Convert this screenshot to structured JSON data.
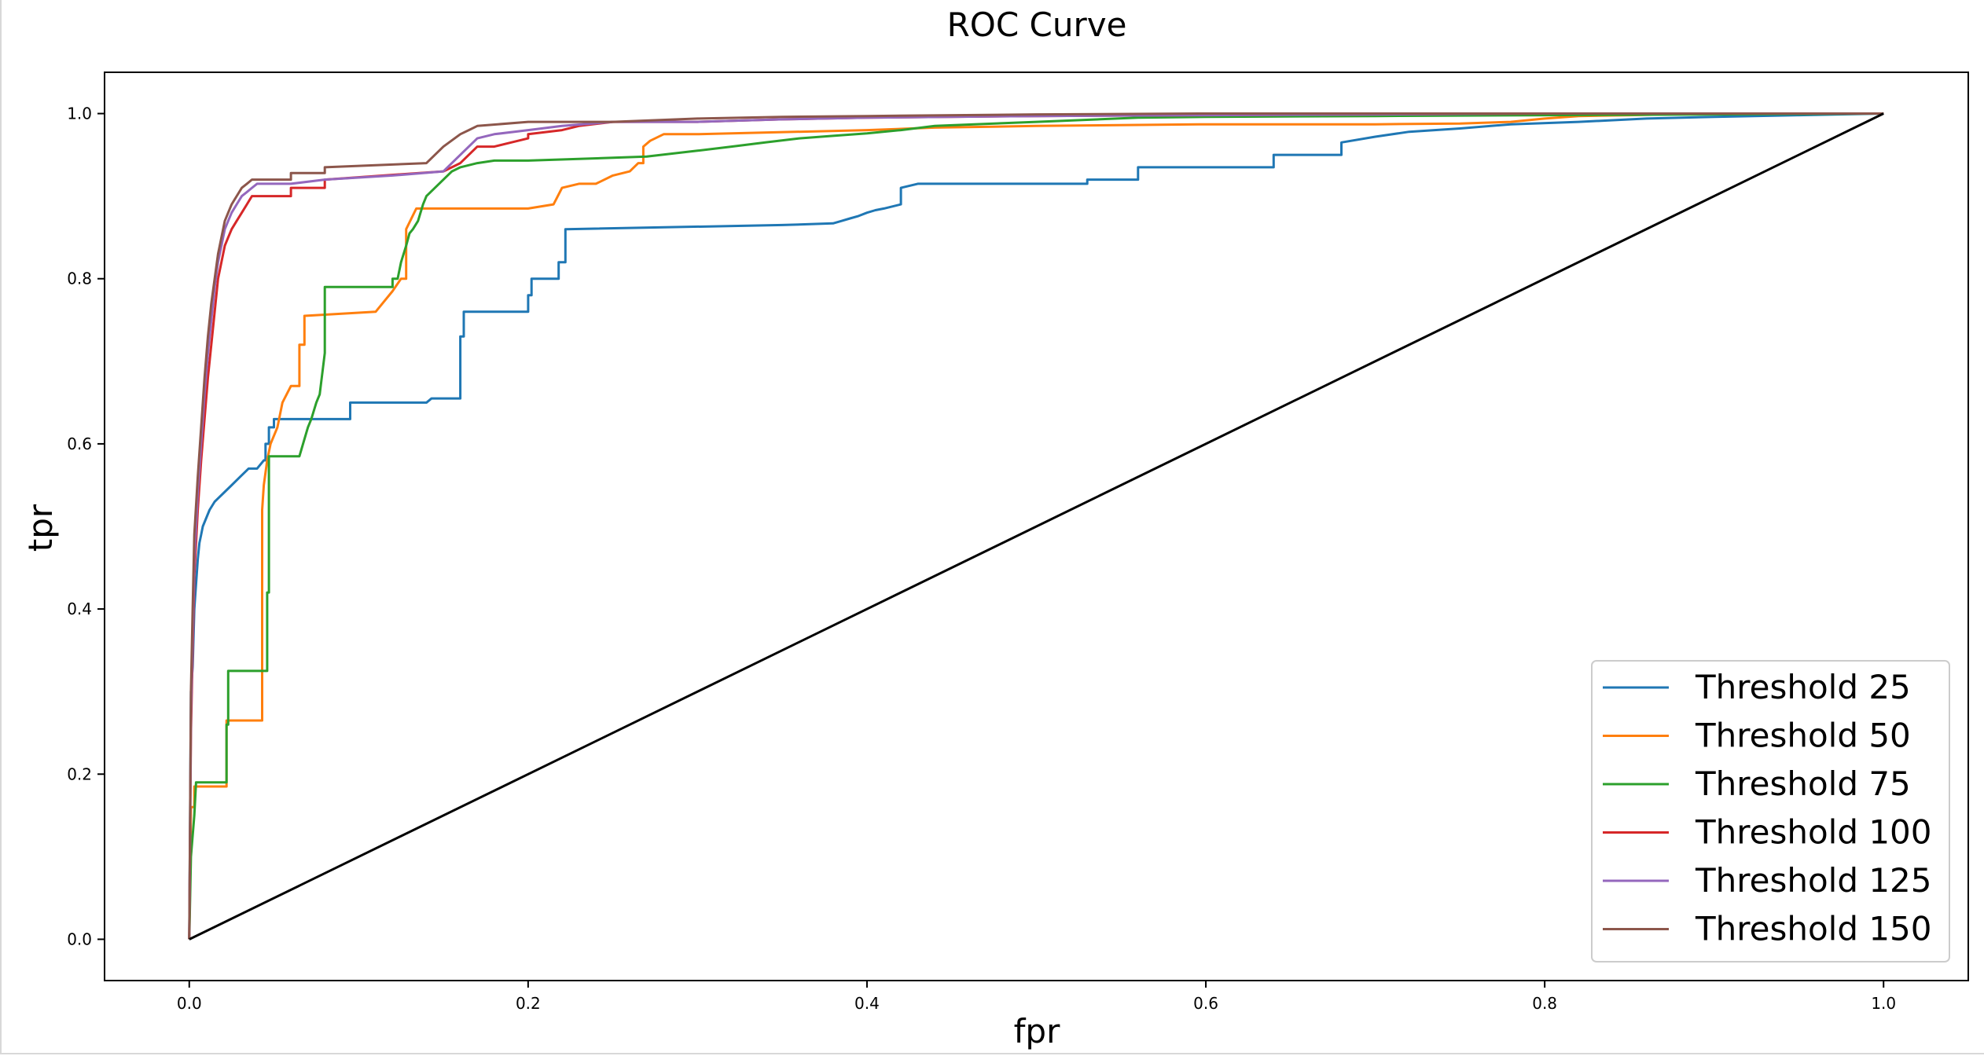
{
  "chart_data": {
    "type": "line",
    "title": "ROC Curve",
    "xlabel": "fpr",
    "ylabel": "tpr",
    "xlim": [
      -0.05,
      1.05
    ],
    "ylim": [
      -0.05,
      1.05
    ],
    "xticks": [
      0.0,
      0.2,
      0.4,
      0.6,
      0.8,
      1.0
    ],
    "yticks": [
      0.0,
      0.2,
      0.4,
      0.6,
      0.8,
      1.0
    ],
    "xtick_labels": [
      "0.0",
      "0.2",
      "0.4",
      "0.6",
      "0.8",
      "1.0"
    ],
    "ytick_labels": [
      "0.0",
      "0.2",
      "0.4",
      "0.6",
      "0.8",
      "1.0"
    ],
    "grid": false,
    "legend_position": "lower right",
    "series": [
      {
        "name": "Threshold 25",
        "color": "#1f77b4",
        "x": [
          0,
          0.001,
          0.002,
          0.003,
          0.005,
          0.006,
          0.007,
          0.008,
          0.01,
          0.012,
          0.015,
          0.02,
          0.025,
          0.03,
          0.035,
          0.04,
          0.044,
          0.045,
          0.045,
          0.047,
          0.047,
          0.05,
          0.05,
          0.095,
          0.095,
          0.14,
          0.143,
          0.16,
          0.16,
          0.162,
          0.162,
          0.2,
          0.2,
          0.202,
          0.202,
          0.218,
          0.218,
          0.22,
          0.222,
          0.222,
          0.35,
          0.38,
          0.385,
          0.39,
          0.395,
          0.4,
          0.405,
          0.41,
          0.42,
          0.42,
          0.43,
          0.53,
          0.53,
          0.55,
          0.56,
          0.56,
          0.64,
          0.64,
          0.68,
          0.68,
          0.7,
          0.72,
          0.75,
          0.78,
          0.82,
          0.86,
          0.9,
          0.95,
          1.0
        ],
        "y": [
          0,
          0.3,
          0.33,
          0.4,
          0.46,
          0.48,
          0.49,
          0.5,
          0.51,
          0.52,
          0.53,
          0.54,
          0.55,
          0.56,
          0.57,
          0.57,
          0.58,
          0.58,
          0.6,
          0.6,
          0.62,
          0.62,
          0.63,
          0.63,
          0.65,
          0.65,
          0.655,
          0.655,
          0.73,
          0.73,
          0.76,
          0.76,
          0.78,
          0.78,
          0.8,
          0.8,
          0.82,
          0.82,
          0.82,
          0.86,
          0.865,
          0.867,
          0.87,
          0.873,
          0.876,
          0.88,
          0.883,
          0.885,
          0.89,
          0.91,
          0.915,
          0.915,
          0.92,
          0.92,
          0.92,
          0.935,
          0.935,
          0.95,
          0.95,
          0.965,
          0.972,
          0.978,
          0.982,
          0.987,
          0.99,
          0.994,
          0.996,
          0.998,
          1.0
        ]
      },
      {
        "name": "Threshold 50",
        "color": "#ff7f0e",
        "x": [
          0,
          0.001,
          0.003,
          0.003,
          0.022,
          0.022,
          0.043,
          0.043,
          0.044,
          0.046,
          0.048,
          0.052,
          0.055,
          0.06,
          0.065,
          0.065,
          0.068,
          0.068,
          0.11,
          0.11,
          0.12,
          0.125,
          0.128,
          0.128,
          0.134,
          0.2,
          0.215,
          0.22,
          0.23,
          0.24,
          0.25,
          0.26,
          0.265,
          0.268,
          0.268,
          0.272,
          0.28,
          0.3,
          0.4,
          0.44,
          0.5,
          0.6,
          0.7,
          0.75,
          0.78,
          0.8,
          0.82,
          0.85,
          0.9,
          1.0
        ],
        "y": [
          0,
          0.16,
          0.16,
          0.185,
          0.185,
          0.265,
          0.265,
          0.52,
          0.55,
          0.58,
          0.6,
          0.62,
          0.65,
          0.67,
          0.67,
          0.72,
          0.72,
          0.755,
          0.76,
          0.76,
          0.785,
          0.8,
          0.8,
          0.86,
          0.885,
          0.885,
          0.89,
          0.91,
          0.915,
          0.915,
          0.925,
          0.93,
          0.94,
          0.94,
          0.96,
          0.967,
          0.975,
          0.975,
          0.98,
          0.983,
          0.985,
          0.987,
          0.987,
          0.988,
          0.99,
          0.994,
          0.997,
          0.998,
          1.0,
          1.0
        ],
        "y_fix": true
      },
      {
        "name": "Threshold 75",
        "color": "#2ca02c",
        "x": [
          0,
          0.001,
          0.003,
          0.004,
          0.005,
          0.022,
          0.022,
          0.023,
          0.023,
          0.046,
          0.046,
          0.047,
          0.047,
          0.065,
          0.07,
          0.072,
          0.075,
          0.077,
          0.08,
          0.08,
          0.1,
          0.12,
          0.12,
          0.123,
          0.125,
          0.128,
          0.13,
          0.132,
          0.135,
          0.138,
          0.14,
          0.145,
          0.15,
          0.155,
          0.16,
          0.17,
          0.18,
          0.2,
          0.23,
          0.27,
          0.3,
          0.32,
          0.34,
          0.36,
          0.38,
          0.4,
          0.42,
          0.44,
          0.5,
          0.56,
          0.6,
          0.7,
          0.8,
          0.9,
          1.0
        ],
        "y": [
          0,
          0.1,
          0.15,
          0.19,
          0.19,
          0.19,
          0.26,
          0.26,
          0.325,
          0.325,
          0.42,
          0.42,
          0.585,
          0.585,
          0.62,
          0.63,
          0.65,
          0.66,
          0.71,
          0.79,
          0.79,
          0.79,
          0.8,
          0.8,
          0.82,
          0.84,
          0.855,
          0.86,
          0.87,
          0.89,
          0.9,
          0.91,
          0.92,
          0.93,
          0.935,
          0.94,
          0.943,
          0.943,
          0.945,
          0.948,
          0.955,
          0.96,
          0.965,
          0.97,
          0.973,
          0.976,
          0.98,
          0.985,
          0.99,
          0.995,
          0.996,
          0.997,
          0.998,
          0.999,
          1.0
        ]
      },
      {
        "name": "Threshold 100",
        "color": "#d62728",
        "x": [
          0,
          0.001,
          0.002,
          0.003,
          0.005,
          0.007,
          0.009,
          0.011,
          0.013,
          0.015,
          0.017,
          0.019,
          0.021,
          0.023,
          0.025,
          0.028,
          0.031,
          0.034,
          0.037,
          0.04,
          0.045,
          0.06,
          0.06,
          0.08,
          0.08,
          0.15,
          0.16,
          0.165,
          0.17,
          0.18,
          0.19,
          0.2,
          0.2,
          0.22,
          0.23,
          0.25,
          0.3,
          0.35,
          0.4,
          0.5,
          0.6,
          0.7,
          0.8,
          0.9,
          1.0
        ],
        "y": [
          0,
          0.25,
          0.35,
          0.44,
          0.52,
          0.58,
          0.63,
          0.68,
          0.72,
          0.76,
          0.8,
          0.82,
          0.84,
          0.85,
          0.86,
          0.87,
          0.88,
          0.89,
          0.9,
          0.9,
          0.9,
          0.9,
          0.91,
          0.91,
          0.92,
          0.93,
          0.94,
          0.95,
          0.96,
          0.96,
          0.965,
          0.97,
          0.975,
          0.98,
          0.985,
          0.99,
          0.99,
          0.993,
          0.995,
          0.997,
          0.998,
          0.999,
          1.0,
          1.0,
          1.0
        ]
      },
      {
        "name": "Threshold 125",
        "color": "#9467bd",
        "x": [
          0,
          0.001,
          0.002,
          0.003,
          0.005,
          0.007,
          0.009,
          0.011,
          0.013,
          0.015,
          0.017,
          0.019,
          0.021,
          0.023,
          0.025,
          0.028,
          0.031,
          0.034,
          0.037,
          0.04,
          0.06,
          0.08,
          0.12,
          0.15,
          0.16,
          0.165,
          0.17,
          0.18,
          0.2,
          0.22,
          0.25,
          0.3,
          0.35,
          0.4,
          0.5,
          0.6,
          0.7,
          0.8,
          0.9,
          1.0
        ],
        "y": [
          0,
          0.27,
          0.37,
          0.46,
          0.54,
          0.6,
          0.66,
          0.71,
          0.75,
          0.79,
          0.82,
          0.84,
          0.86,
          0.87,
          0.88,
          0.89,
          0.9,
          0.905,
          0.91,
          0.915,
          0.915,
          0.92,
          0.925,
          0.93,
          0.95,
          0.96,
          0.97,
          0.975,
          0.98,
          0.985,
          0.99,
          0.99,
          0.993,
          0.995,
          0.997,
          0.998,
          0.999,
          1.0,
          1.0,
          1.0
        ]
      },
      {
        "name": "Threshold 150",
        "color": "#8c564b",
        "x": [
          0,
          0.001,
          0.002,
          0.003,
          0.005,
          0.007,
          0.009,
          0.011,
          0.013,
          0.015,
          0.017,
          0.019,
          0.021,
          0.023,
          0.025,
          0.028,
          0.031,
          0.034,
          0.037,
          0.04,
          0.06,
          0.06,
          0.08,
          0.08,
          0.14,
          0.15,
          0.16,
          0.165,
          0.17,
          0.2,
          0.25,
          0.3,
          0.35,
          0.4,
          0.5,
          0.6,
          0.7,
          0.8,
          0.9,
          1.0
        ],
        "y": [
          0,
          0.3,
          0.4,
          0.49,
          0.56,
          0.62,
          0.68,
          0.73,
          0.77,
          0.8,
          0.83,
          0.85,
          0.87,
          0.88,
          0.89,
          0.9,
          0.91,
          0.915,
          0.92,
          0.92,
          0.92,
          0.928,
          0.928,
          0.935,
          0.94,
          0.96,
          0.975,
          0.98,
          0.985,
          0.99,
          0.99,
          0.994,
          0.996,
          0.997,
          0.999,
          1.0,
          1.0,
          1.0,
          1.0,
          1.0
        ]
      },
      {
        "name": "",
        "color": "#000000",
        "x": [
          0,
          1.0
        ],
        "y": [
          0,
          1.0
        ]
      }
    ]
  }
}
